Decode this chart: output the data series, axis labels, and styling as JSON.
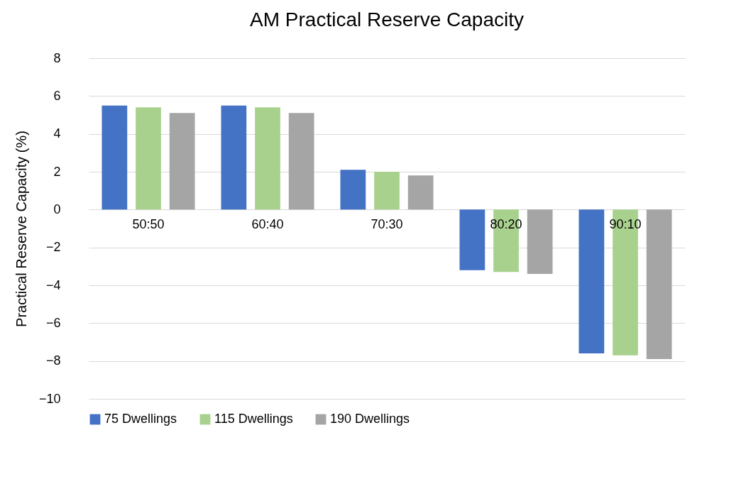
{
  "chart_data": {
    "type": "bar",
    "title": "AM Practical Reserve Capacity",
    "ylabel": "Practical Reserve Capacity (%)",
    "categories": [
      "50:50",
      "60:40",
      "70:30",
      "80:20",
      "90:10"
    ],
    "series": [
      {
        "name": "75 Dwellings",
        "color": "#4472c4",
        "values": [
          5.5,
          5.5,
          2.1,
          -3.2,
          -7.6
        ]
      },
      {
        "name": "115 Dwellings",
        "color": "#a9d18e",
        "values": [
          5.4,
          5.4,
          2.0,
          -3.3,
          -7.7
        ]
      },
      {
        "name": "190 Dwellings",
        "color": "#a5a5a5",
        "values": [
          5.1,
          5.1,
          1.8,
          -3.4,
          -7.9
        ]
      }
    ],
    "ylim": [
      -10,
      8
    ],
    "yticks": [
      -10,
      -8,
      -6,
      -4,
      -2,
      0,
      2,
      4,
      6,
      8
    ],
    "grid": "y",
    "legend": "bottom"
  }
}
